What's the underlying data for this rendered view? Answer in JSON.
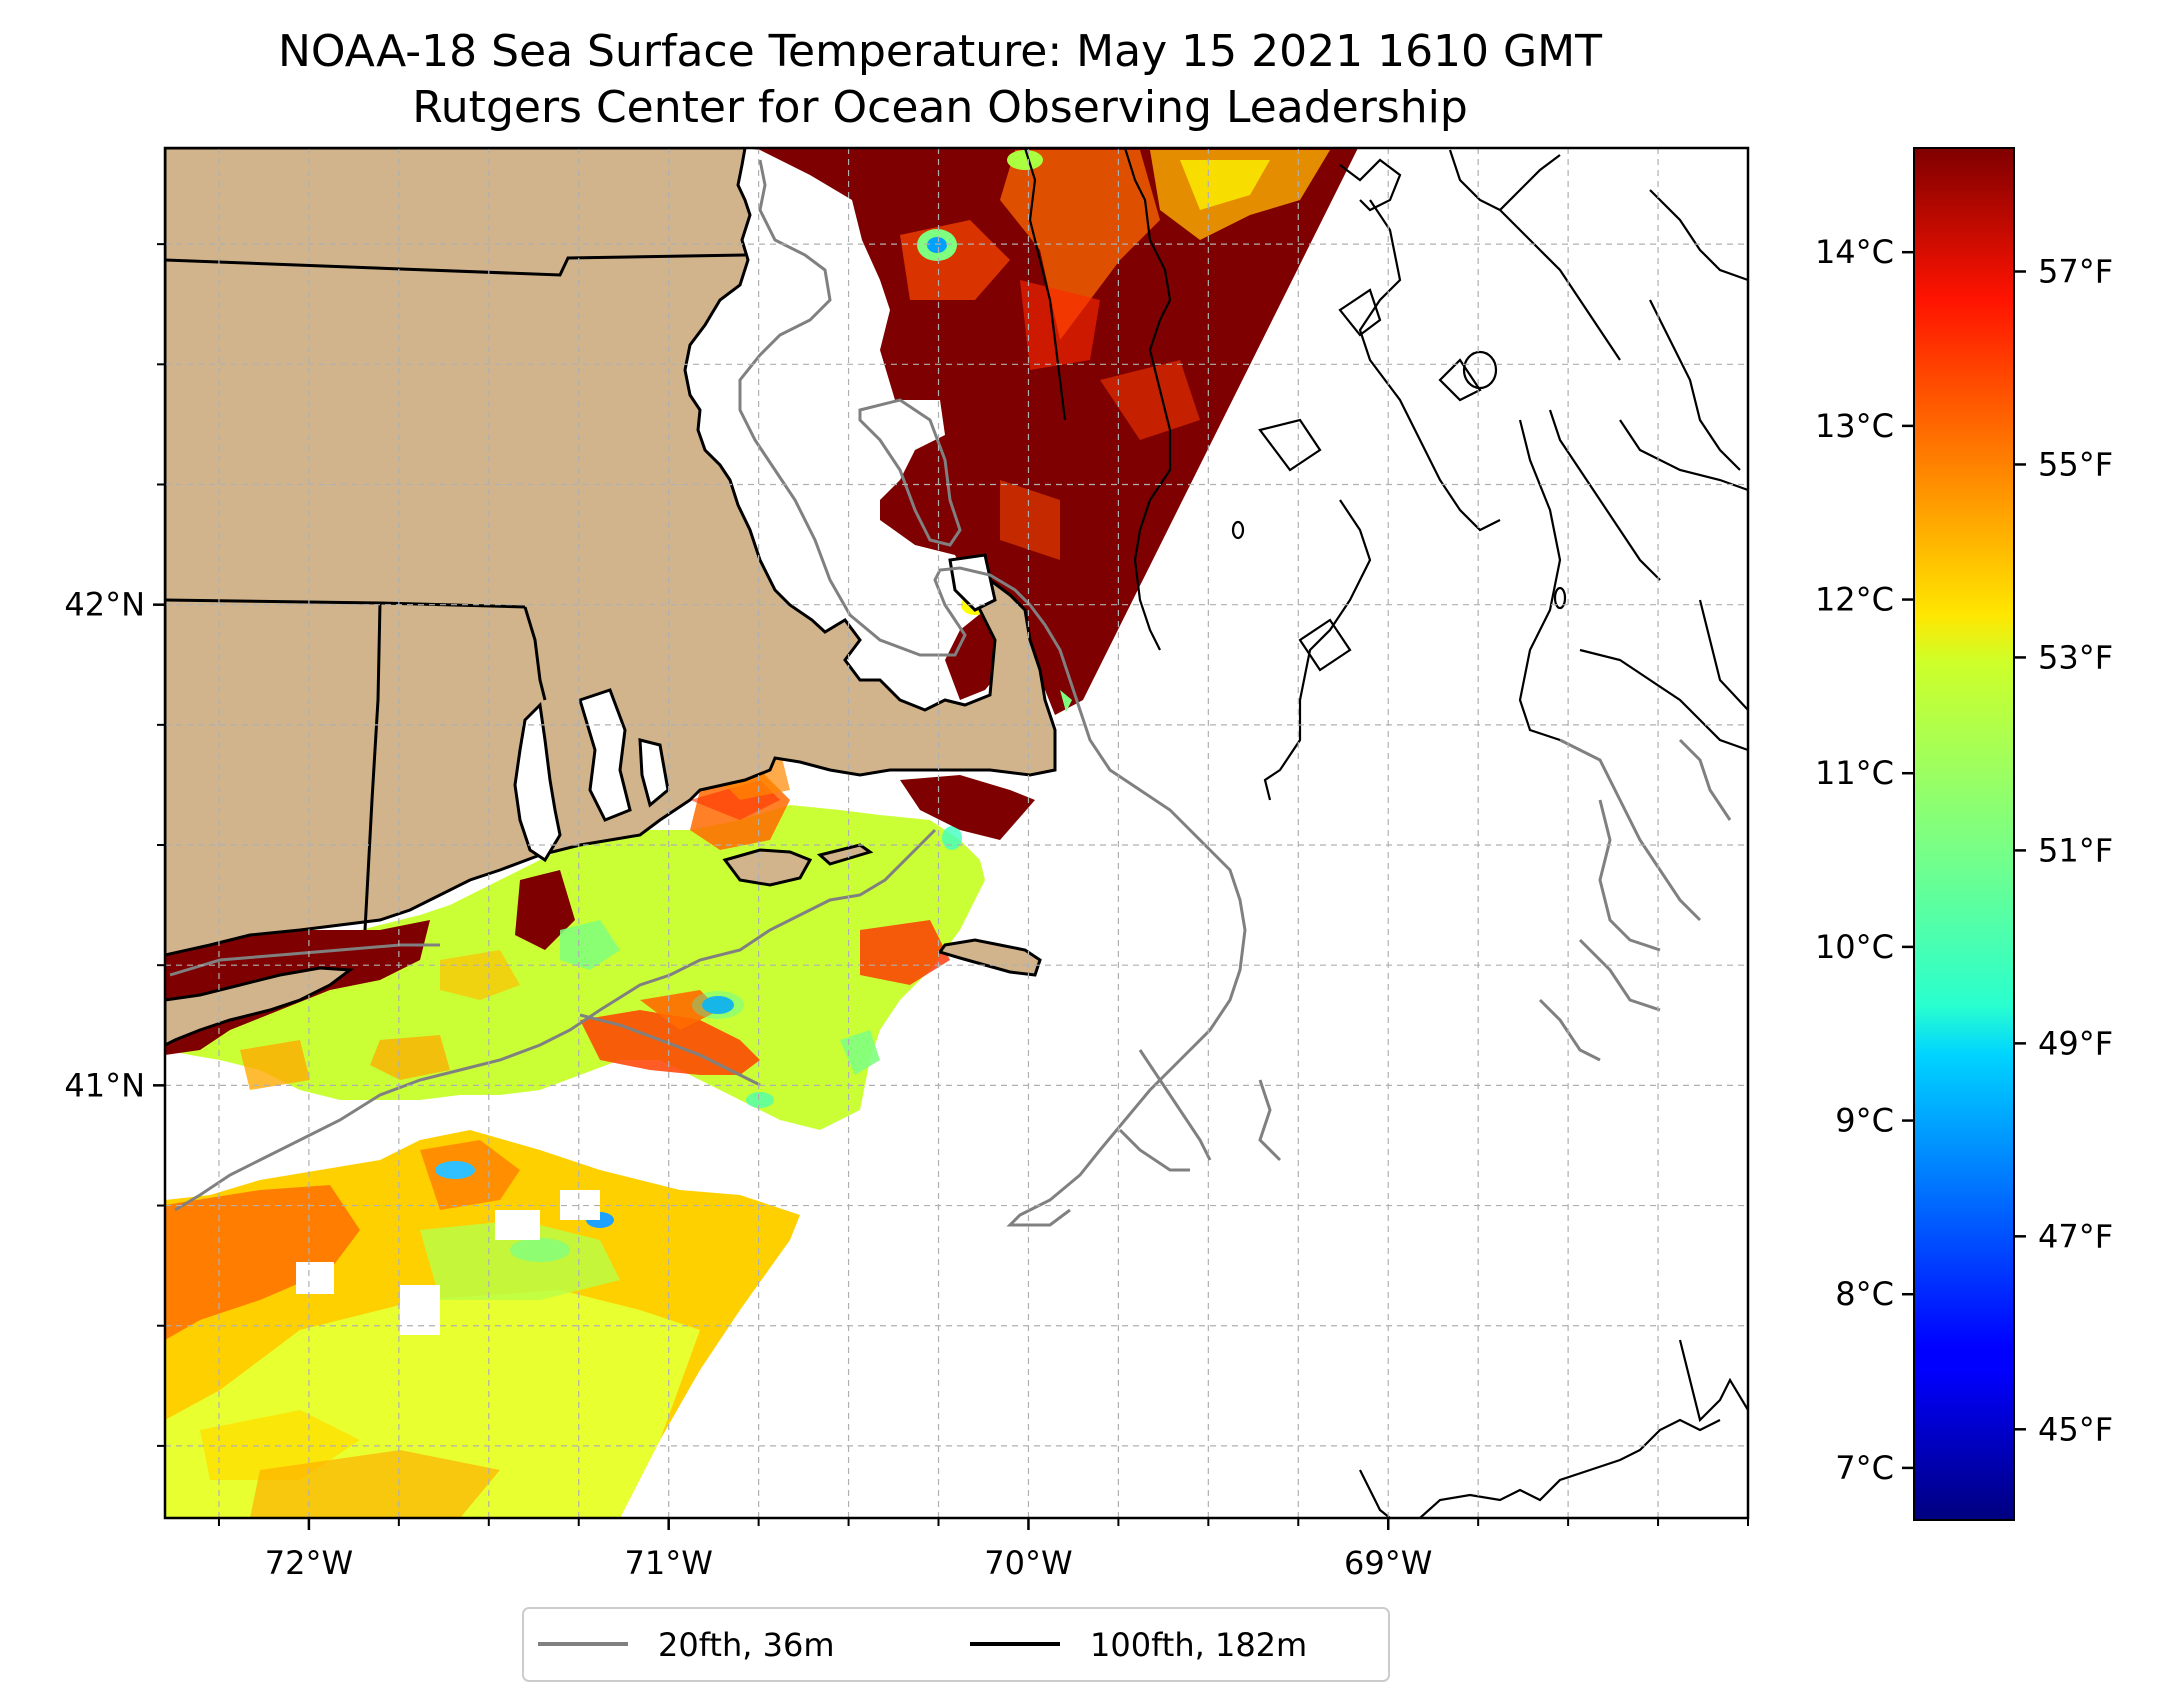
{
  "title": {
    "line1": "NOAA-18 Sea Surface Temperature: May 15 2021 1610 GMT",
    "line2": "Rutgers Center for Ocean Observing Leadership"
  },
  "map": {
    "lon_range": [
      -72.4,
      -68.0
    ],
    "lat_range": [
      40.1,
      42.95
    ],
    "x_ticks": [
      {
        "lon": -72,
        "label": "72°W"
      },
      {
        "lon": -71,
        "label": "71°W"
      },
      {
        "lon": -70,
        "label": "70°W"
      },
      {
        "lon": -69,
        "label": "69°W"
      }
    ],
    "y_ticks": [
      {
        "lat": 42,
        "label": "42°N"
      },
      {
        "lat": 41,
        "label": "41°N"
      }
    ],
    "grid": "dashed gray, every 0.25°",
    "land_color": "#d2b48c",
    "missing_data_color": "#ffffff"
  },
  "colorbar": {
    "colormap": "jet",
    "celsius_range": [
      6.7,
      14.6
    ],
    "celsius_ticks": [
      "7°C",
      "8°C",
      "9°C",
      "10°C",
      "11°C",
      "12°C",
      "13°C",
      "14°C"
    ],
    "fahrenheit_ticks": [
      "45°F",
      "47°F",
      "49°F",
      "51°F",
      "53°F",
      "55°F",
      "57°F"
    ],
    "colors": [
      "#00007f",
      "#0000ff",
      "#007fff",
      "#00ffff",
      "#7fff7f",
      "#ffff00",
      "#ff7f00",
      "#ff0000",
      "#7f0000"
    ]
  },
  "legend": {
    "items": [
      {
        "label": "20fth, 36m",
        "color": "#808080"
      },
      {
        "label": "100fth, 182m",
        "color": "#000000"
      }
    ]
  }
}
